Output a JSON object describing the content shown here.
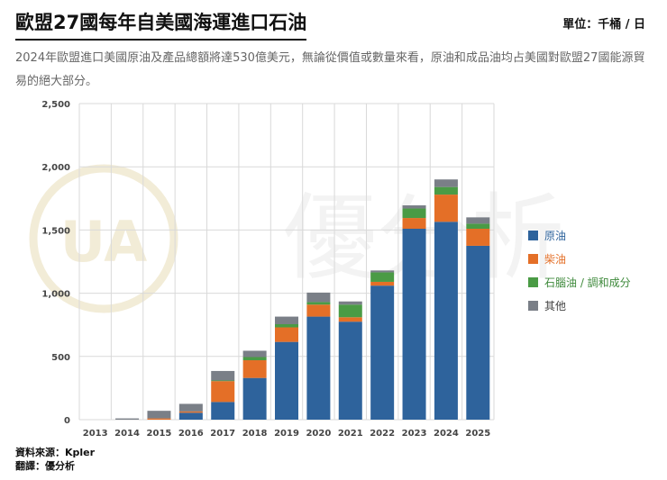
{
  "header": {
    "title": "歐盟27國每年自美國海運進口石油",
    "unit": "單位：千桶 / 日",
    "subtitle": "2024年歐盟進口美國原油及產品總額將達530億美元，無論從價值或數量來看，原油和成品油均占美國對歐盟27國能源貿易的絕大部分。"
  },
  "footer": {
    "source": "資料來源：Kpler",
    "translation": "翻譯：優分析"
  },
  "watermark": {
    "text": "優分析",
    "logo_text": "UA"
  },
  "colors": {
    "crude": "#2e639c",
    "diesel": "#e46f27",
    "naphtha": "#4a9b45",
    "other": "#7a7f87",
    "legend_naphtha_text": "#3f8a3c",
    "legend_diesel_text": "#e46f27",
    "legend_crude_text": "#2e639c",
    "legend_other_text": "#444444"
  },
  "chart_data": {
    "type": "bar",
    "stacked": true,
    "title": "歐盟27國每年自美國海運進口石油",
    "xlabel": "",
    "ylabel": "千桶 / 日",
    "ylim": [
      0,
      2500
    ],
    "yticks": [
      0,
      500,
      1000,
      1500,
      2000,
      2500
    ],
    "ytick_labels": [
      "0",
      "500",
      "1,000",
      "1,500",
      "2,000",
      "2,500"
    ],
    "grid": true,
    "legend_position": "right",
    "categories": [
      "2013",
      "2014",
      "2015",
      "2016",
      "2017",
      "2018",
      "2019",
      "2020",
      "2021",
      "2022",
      "2023",
      "2024",
      "2025"
    ],
    "series": [
      {
        "name": "原油",
        "key": "crude",
        "values": [
          0,
          0,
          0,
          55,
          140,
          330,
          615,
          815,
          775,
          1060,
          1510,
          1565,
          1375
        ]
      },
      {
        "name": "柴油",
        "key": "diesel",
        "values": [
          0,
          0,
          10,
          10,
          165,
          140,
          115,
          95,
          35,
          30,
          85,
          215,
          135
        ]
      },
      {
        "name": "石腦油 / 調和成分",
        "key": "naphtha",
        "values": [
          0,
          0,
          0,
          0,
          5,
          25,
          25,
          20,
          100,
          75,
          75,
          60,
          40
        ]
      },
      {
        "name": "其他",
        "key": "other",
        "values": [
          0,
          10,
          60,
          60,
          75,
          50,
          60,
          75,
          25,
          15,
          25,
          60,
          50
        ]
      }
    ]
  }
}
